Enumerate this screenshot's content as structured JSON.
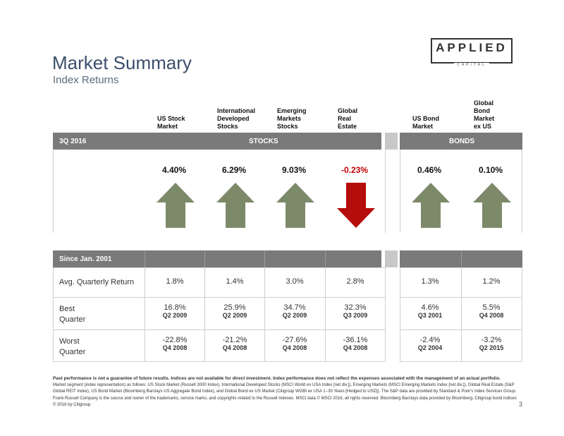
{
  "header": {
    "title": "Market Summary",
    "subtitle": "Index Returns"
  },
  "logo": {
    "main": "APPLIED",
    "sub": "CAPITAL"
  },
  "columns": [
    {
      "label": "US Stock\nMarket",
      "return": "4.40%",
      "direction": "up",
      "avg": "1.8%",
      "best": "16.8%",
      "best_q": "Q2 2009",
      "worst": "-22.8%",
      "worst_q": "Q4 2008"
    },
    {
      "label": "International\nDeveloped\nStocks",
      "return": "6.29%",
      "direction": "up",
      "avg": "1.4%",
      "best": "25.9%",
      "best_q": "Q2 2009",
      "worst": "-21.2%",
      "worst_q": "Q4 2008"
    },
    {
      "label": "Emerging\nMarkets\nStocks",
      "return": "9.03%",
      "direction": "up",
      "avg": "3.0%",
      "best": "34.7%",
      "best_q": "Q2 2009",
      "worst": "-27.6%",
      "worst_q": "Q4 2008"
    },
    {
      "label": "Global\nReal\nEstate",
      "return": "-0.23%",
      "direction": "down",
      "avg": "2.8%",
      "best": "32.3%",
      "best_q": "Q3 2009",
      "worst": "-36.1%",
      "worst_q": "Q4 2008"
    },
    {
      "label": "US Bond\nMarket",
      "return": "0.46%",
      "direction": "up",
      "avg": "1.3%",
      "best": "4.6%",
      "best_q": "Q3 2001",
      "worst": "-2.4%",
      "worst_q": "Q2 2004"
    },
    {
      "label": "Global\nBond\nMarket\nex US",
      "return": "0.10%",
      "direction": "up",
      "avg": "1.2%",
      "best": "5.5%",
      "best_q": "Q4 2008",
      "worst": "-3.2%",
      "worst_q": "Q2 2015"
    }
  ],
  "band1": {
    "period": "3Q 2016",
    "stocks": "STOCKS",
    "bonds": "BONDS"
  },
  "band2": {
    "period": "Since Jan. 2001"
  },
  "rows": {
    "avg": "Avg. Quarterly Return",
    "best": "Best\nQuarter",
    "worst": "Worst\nQuarter"
  },
  "colors": {
    "up": "#7d8a6a",
    "down": "#b50c0c",
    "down_text": "#c00000",
    "band": "#7a7a7a"
  },
  "footer": {
    "disclaimer": "Past performance is not a guarantee of future results. Indices are not available for direct investment. Index performance does not reflect the expenses associated with the management of an actual portfolio.",
    "text": "Market segment (index representation) as follows: US Stock Market (Russell 3000 Index), International Developed Stocks (MSCI World ex USA Index [net div.]), Emerging Markets (MSCI Emerging Markets Index [net div.]), Global Real Estate (S&P Global REIT Index), US Bond Market (Bloomberg Barclays US Aggregate Bond Index), and Global Bond ex US Market (Citigroup WGBI ex USA 1−30 Years [Hedged to USD]). The S&P data are provided by Standard & Poor's Index Services Group. Frank Russell Company is the source and owner of the trademarks, service marks, and copyrights related to the Russell Indexes. MSCI data © MSCI 2016, all rights reserved. Bloomberg Barclays data provided by Bloomberg. Citigroup bond indices © 2016 by Citigroup."
  },
  "page_number": "3"
}
